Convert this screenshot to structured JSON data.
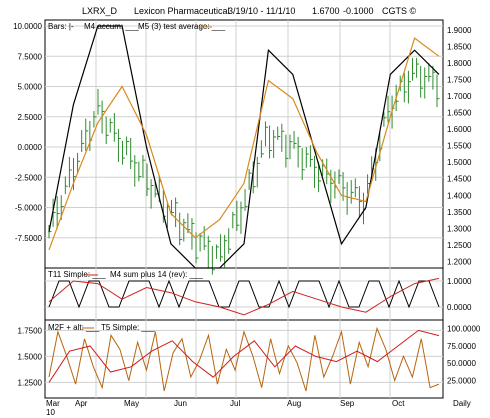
{
  "header": {
    "symbol": "LXRX_D",
    "company": "Lexicon Pharmaceutical",
    "date_range": "3/19/10 - 11/1/10",
    "last_price": "1.6700",
    "change": "-0.1000",
    "credit": "CGTS ©"
  },
  "panels": [
    {
      "id": "price",
      "legend": [
        "Bars: |-",
        "M4 accum: ___",
        "M5 (3) test average: ___"
      ],
      "left_ticks": [
        "10.0000",
        "7.5000",
        "5.0000",
        "2.5000",
        "0.0000",
        "-2.5000",
        "-5.0000",
        "-7.5000"
      ],
      "right_ticks": [
        "1.9000",
        "1.8500",
        "1.8000",
        "1.7500",
        "1.7000",
        "1.6500",
        "1.6000",
        "1.5500",
        "1.5000",
        "1.4500",
        "1.4000",
        "1.3500",
        "1.3000",
        "1.2500",
        "1.2000"
      ]
    },
    {
      "id": "t11",
      "legend": [
        "T11 Simple: ___",
        "M4 sum plus 14 (rev): ___"
      ],
      "right_ticks": [
        "1.0000",
        "0.0000"
      ]
    },
    {
      "id": "m2f",
      "legend": [
        "M2F + alt: ___",
        "T5 Simple: ___"
      ],
      "left_ticks": [
        "1.7500",
        "1.5000",
        "1.2500"
      ],
      "right_ticks": [
        "100.0000",
        "75.0000",
        "50.0000",
        "25.0000"
      ]
    }
  ],
  "x_axis": {
    "months": [
      "Mar",
      "Apr",
      "May",
      "Jun",
      "Jul",
      "Aug",
      "Sep",
      "Oct"
    ],
    "year_label": "10",
    "period_label": "Daily"
  },
  "colors": {
    "bars": "#2e8b2e",
    "accum": "#000000",
    "average": "#d98a1c",
    "sum": "#cc2222",
    "oscillator": "#b8650f",
    "simple": "#d11a1a",
    "grid": "#d0d0d0"
  },
  "chart_data": [
    {
      "type": "bar",
      "title": "",
      "y_left_range": [
        -10,
        10.5
      ],
      "y_right_range": [
        1.18,
        1.93
      ],
      "x": [
        "2010-03-22",
        "2010-04-05",
        "2010-04-19",
        "2010-05-03",
        "2010-05-17",
        "2010-06-01",
        "2010-06-14",
        "2010-06-28",
        "2010-07-12",
        "2010-07-26",
        "2010-08-09",
        "2010-08-23",
        "2010-09-07",
        "2010-09-20",
        "2010-10-04",
        "2010-10-18",
        "2010-10-29"
      ],
      "series": [
        {
          "name": "Bars",
          "axis": "right",
          "values": [
            1.29,
            1.48,
            1.66,
            1.55,
            1.45,
            1.35,
            1.27,
            1.21,
            1.37,
            1.58,
            1.55,
            1.48,
            1.43,
            1.38,
            1.66,
            1.77,
            1.74
          ]
        },
        {
          "name": "M4 accum",
          "axis": "left",
          "values": [
            -7.0,
            3.5,
            10.0,
            10.0,
            0.0,
            -8.0,
            -10.0,
            -10.0,
            -8.0,
            8.0,
            6.0,
            -1.0,
            -8.0,
            -5.0,
            6.0,
            8.0,
            6.0
          ]
        },
        {
          "name": "M5 (3) test average",
          "axis": "left",
          "values": [
            -8.5,
            -3.0,
            2.0,
            5.0,
            1.0,
            -5.5,
            -7.5,
            -6.0,
            -3.0,
            5.5,
            4.0,
            -0.5,
            -4.0,
            -4.5,
            2.5,
            9.0,
            7.5
          ]
        }
      ]
    },
    {
      "type": "line",
      "title": "",
      "y_right_range": [
        -0.5,
        1.5
      ],
      "series": [
        {
          "name": "T11 Simple",
          "values": [
            0,
            1,
            1,
            0,
            1,
            1,
            0,
            0,
            1,
            1,
            1,
            0,
            1,
            0,
            1,
            1,
            1,
            0,
            0,
            1,
            1,
            0,
            0,
            1,
            0,
            1,
            1,
            1,
            0,
            1,
            0,
            0,
            1,
            1,
            0,
            1,
            0,
            1,
            1,
            0
          ]
        },
        {
          "name": "M4 sum plus 14 (rev)",
          "values": [
            0.2,
            1.0,
            0.9,
            0.3,
            0.75,
            0.55,
            0.2,
            0.0,
            -0.3,
            0.1,
            0.6,
            0.3,
            0.0,
            -0.2,
            0.4,
            0.9,
            1.1
          ]
        }
      ]
    },
    {
      "type": "line",
      "title": "",
      "y_left_range": [
        1.1,
        1.85
      ],
      "y_right_range": [
        0,
        112
      ],
      "series": [
        {
          "name": "M2F + alt",
          "axis": "right",
          "values": [
            30,
            95,
            60,
            20,
            85,
            45,
            15,
            90,
            70,
            25,
            80,
            40,
            95,
            10,
            65,
            85,
            30,
            55,
            90,
            20,
            70,
            40,
            95,
            60,
            15,
            85,
            35,
            75,
            50,
            10,
            90,
            30,
            60,
            95,
            20,
            80,
            45,
            100,
            70,
            25,
            60,
            30,
            85,
            15,
            20
          ]
        },
        {
          "name": "T5 Simple",
          "axis": "left",
          "values": [
            1.25,
            1.55,
            1.6,
            1.35,
            1.4,
            1.55,
            1.65,
            1.45,
            1.3,
            1.5,
            1.65,
            1.4,
            1.6,
            1.5,
            1.45,
            1.55,
            1.45,
            1.6,
            1.75,
            1.7
          ]
        }
      ]
    }
  ]
}
